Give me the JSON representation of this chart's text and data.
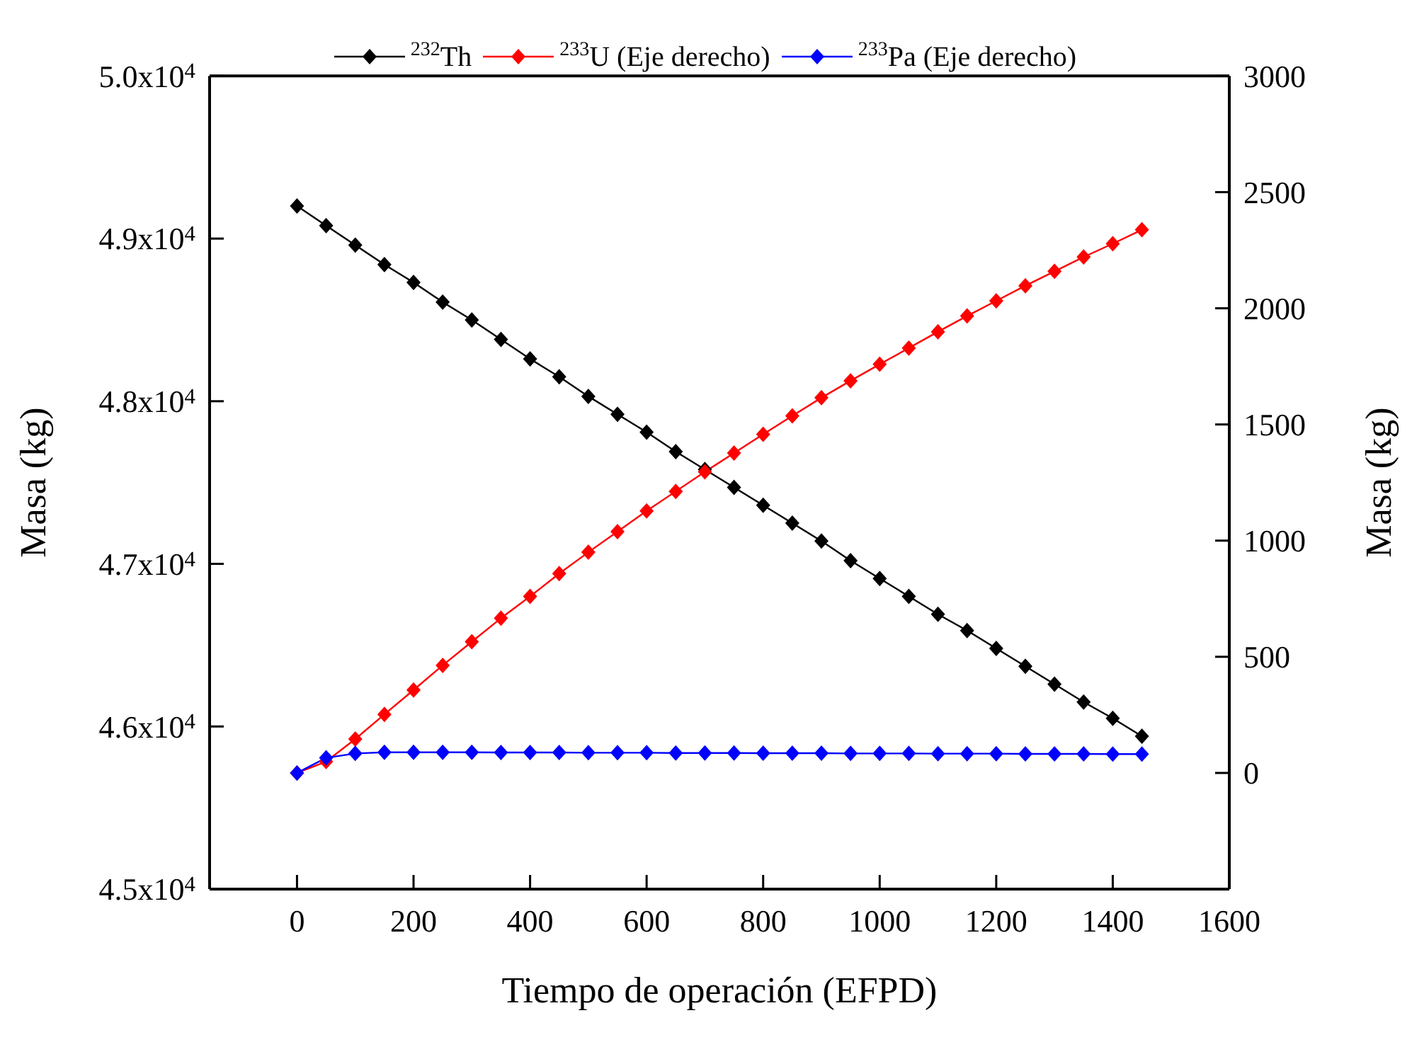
{
  "chart_data": {
    "type": "line",
    "xlabel": "Tiempo de operación (EFPD)",
    "ylabel": "Masa (kg)",
    "y2label": "Masa (kg)",
    "x": [
      0,
      50,
      100,
      150,
      200,
      250,
      300,
      350,
      400,
      450,
      500,
      550,
      600,
      650,
      700,
      750,
      800,
      850,
      900,
      950,
      1000,
      1050,
      1100,
      1150,
      1200,
      1250,
      1300,
      1350,
      1400,
      1450
    ],
    "series": [
      {
        "name": "$^{232}$Th",
        "color": "#000000",
        "values": [
          49200,
          49080,
          48960,
          48840,
          48730,
          48610,
          48500,
          48380,
          48260,
          48150,
          48030,
          47920,
          47810,
          47690,
          47580,
          47470,
          47360,
          47250,
          47140,
          47020,
          46910,
          46800,
          46690,
          46590,
          46480,
          46370,
          46260,
          46150,
          46050,
          45940
        ]
      },
      {
        "name": "$^{233}$U (Eje derecho)",
        "color": "#ff0000",
        "axis": "y2",
        "values": [
          0,
          49,
          146,
          252,
          357,
          463,
          565,
          666,
          760,
          858,
          950,
          1039,
          1128,
          1212,
          1296,
          1377,
          1458,
          1537,
          1615,
          1688,
          1759,
          1829,
          1899,
          1967,
          2032,
          2097,
          2159,
          2221,
          2278,
          2338
        ]
      },
      {
        "name": "$^{233}$Pa (Eje derecho)",
        "color": "#0000ff",
        "axis": "y2",
        "values": [
          0,
          65,
          84,
          89,
          89,
          89,
          89,
          88,
          88,
          88,
          87,
          87,
          87,
          86,
          86,
          86,
          85,
          85,
          85,
          84,
          84,
          84,
          83,
          83,
          83,
          82,
          82,
          82,
          81,
          81
        ]
      }
    ],
    "xlim": [
      -150,
      1600
    ],
    "xticks": [
      0,
      200,
      400,
      600,
      800,
      1000,
      1200,
      1400,
      1600
    ],
    "ylim": [
      45000,
      50000
    ],
    "yticks": [
      {
        "value": 45000,
        "label": "4.5x10$^{4}$"
      },
      {
        "value": 46000,
        "label": "4.6x10$^{4}$"
      },
      {
        "value": 47000,
        "label": "4.7x10$^{4}$"
      },
      {
        "value": 48000,
        "label": "4.8x10$^{4}$"
      },
      {
        "value": 49000,
        "label": "4.9x10$^{4}$"
      },
      {
        "value": 50000,
        "label": "5.0x10$^{4}$"
      }
    ],
    "y2lim": [
      -500,
      3000
    ],
    "y2ticks": [
      0,
      500,
      1000,
      1500,
      2000,
      2500,
      3000
    ],
    "grid": false,
    "legend": "top",
    "marker": "diamond",
    "line_style": "solid"
  }
}
